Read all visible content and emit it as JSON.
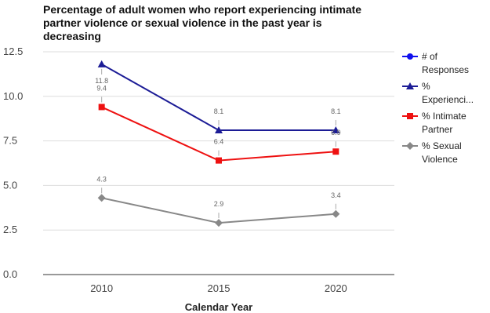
{
  "chart_data": {
    "type": "line",
    "title": "Percentage of adult women who report experiencing intimate partner violence or sexual violence in the past year is decreasing",
    "x_label": "Calendar Year",
    "categories": [
      "2010",
      "2015",
      "2020"
    ],
    "series": [
      {
        "name": "# of Responses",
        "color": "#1010ee",
        "marker": "circle",
        "values": [
          null,
          null,
          null
        ]
      },
      {
        "name": "% Experienci...",
        "color": "#1c1c96",
        "marker": "triangle",
        "values": [
          11.8,
          8.1,
          8.1
        ]
      },
      {
        "name": "% Intimate Partner",
        "color": "#ee1111",
        "marker": "square",
        "values": [
          9.4,
          6.4,
          6.9
        ]
      },
      {
        "name": "% Sexual Violence",
        "color": "#888888",
        "marker": "diamond",
        "values": [
          4.3,
          2.9,
          3.4
        ]
      }
    ],
    "ylim": [
      0,
      12.5
    ],
    "yticks": [
      {
        "value": 0,
        "label": "0.0"
      },
      2.5,
      {
        "value": 5,
        "label": "5.0"
      },
      7.5,
      {
        "value": 10,
        "label": "10.0"
      },
      12.5
    ],
    "grid": true
  }
}
